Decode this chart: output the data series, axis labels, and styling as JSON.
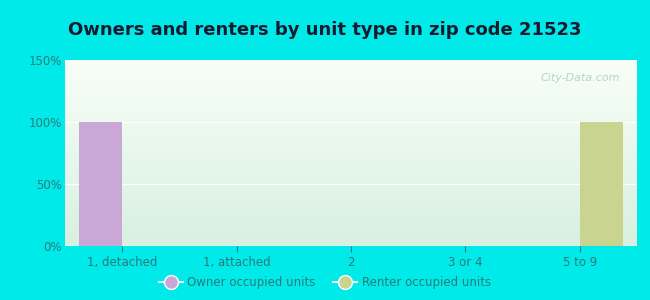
{
  "title": "Owners and renters by unit type in zip code 21523",
  "categories": [
    "1, detached",
    "1, attached",
    "2",
    "3 or 4",
    "5 to 9"
  ],
  "owner_values": [
    100,
    0,
    0,
    0,
    0
  ],
  "renter_values": [
    0,
    0,
    0,
    0,
    100
  ],
  "owner_color": "#c9a8d8",
  "renter_color": "#c8d490",
  "ylim": [
    0,
    150
  ],
  "yticks": [
    0,
    50,
    100,
    150
  ],
  "ytick_labels": [
    "0%",
    "50%",
    "100%",
    "150%"
  ],
  "background_color": "#00eaea",
  "bar_width": 0.38,
  "title_fontsize": 13,
  "tick_label_color": "#2a7a7a",
  "legend_owner": "Owner occupied units",
  "legend_renter": "Renter occupied units",
  "watermark": "City-Data.com"
}
